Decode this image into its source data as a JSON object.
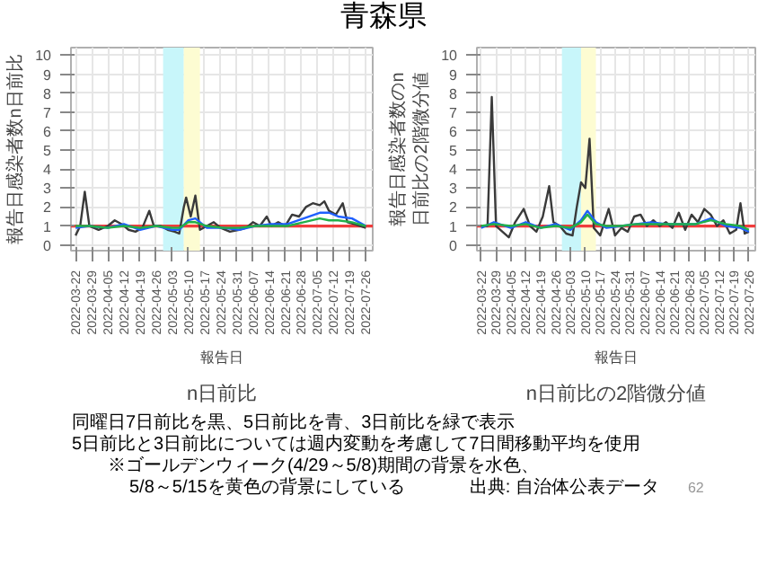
{
  "chart_data": [
    {
      "type": "line",
      "title": "n日前比",
      "xlabel": "報告日",
      "ylabel": "報告日感染者数n日前比",
      "annotations": [
        "青森県"
      ],
      "xlim": [
        "2022-03-20",
        "2022-07-29"
      ],
      "ylim": [
        -0.3,
        10.4
      ],
      "xticks": [
        "2022-03-22",
        "2022-03-29",
        "2022-04-05",
        "2022-04-12",
        "2022-04-19",
        "2022-04-26",
        "2022-05-03",
        "2022-05-10",
        "2022-05-17",
        "2022-05-24",
        "2022-05-31",
        "2022-06-07",
        "2022-06-14",
        "2022-06-21",
        "2022-06-28",
        "2022-07-05",
        "2022-07-12",
        "2022-07-19",
        "2022-07-26"
      ],
      "yticks": [
        0,
        1,
        2,
        3,
        4,
        5,
        6,
        7,
        8,
        9,
        10
      ],
      "grid": true,
      "bands": [
        {
          "axis": "x",
          "from": "2022-04-29",
          "to": "2022-05-08",
          "color": "#c8f6fa"
        },
        {
          "axis": "x",
          "from": "2022-05-08",
          "to": "2022-05-15",
          "color": "#fdfcd2"
        }
      ],
      "ref_lines": [
        {
          "axis": "y",
          "value": 1,
          "color": "#f03c3c"
        }
      ],
      "series": [
        {
          "color": "#3a3a3a",
          "x": [
            "2022-03-22",
            "2022-03-24",
            "2022-03-26",
            "2022-03-28",
            "2022-04-01",
            "2022-04-05",
            "2022-04-08",
            "2022-04-11",
            "2022-04-14",
            "2022-04-17",
            "2022-04-20",
            "2022-04-23",
            "2022-04-25",
            "2022-04-28",
            "2022-05-01",
            "2022-05-04",
            "2022-05-06",
            "2022-05-08",
            "2022-05-09",
            "2022-05-11",
            "2022-05-13",
            "2022-05-15",
            "2022-05-18",
            "2022-05-21",
            "2022-05-24",
            "2022-05-28",
            "2022-06-01",
            "2022-06-04",
            "2022-06-07",
            "2022-06-10",
            "2022-06-13",
            "2022-06-15",
            "2022-06-18",
            "2022-06-21",
            "2022-06-24",
            "2022-06-27",
            "2022-06-30",
            "2022-07-03",
            "2022-07-06",
            "2022-07-08",
            "2022-07-10",
            "2022-07-13",
            "2022-07-16",
            "2022-07-18",
            "2022-07-21",
            "2022-07-26"
          ],
          "values": [
            0.5,
            1.0,
            2.8,
            1.0,
            0.8,
            1.0,
            1.3,
            1.1,
            0.8,
            0.7,
            0.9,
            1.8,
            1.0,
            1.0,
            0.8,
            0.7,
            0.6,
            2.0,
            2.5,
            1.5,
            2.6,
            0.8,
            1.0,
            1.2,
            0.9,
            0.7,
            0.8,
            0.9,
            1.2,
            1.0,
            1.5,
            1.0,
            1.2,
            1.0,
            1.6,
            1.5,
            2.0,
            2.2,
            2.1,
            2.3,
            1.8,
            1.6,
            2.2,
            1.2,
            1.1,
            0.9
          ]
        },
        {
          "color": "#1f5fff",
          "x": [
            "2022-03-22",
            "2022-03-28",
            "2022-04-05",
            "2022-04-12",
            "2022-04-19",
            "2022-04-26",
            "2022-05-03",
            "2022-05-06",
            "2022-05-10",
            "2022-05-13",
            "2022-05-18",
            "2022-05-25",
            "2022-06-01",
            "2022-06-08",
            "2022-06-15",
            "2022-06-22",
            "2022-06-29",
            "2022-07-06",
            "2022-07-10",
            "2022-07-14",
            "2022-07-20",
            "2022-07-26"
          ],
          "values": [
            0.9,
            1.0,
            0.9,
            1.1,
            0.8,
            1.0,
            0.8,
            0.8,
            1.3,
            1.4,
            0.9,
            0.9,
            0.8,
            1.0,
            1.1,
            1.1,
            1.4,
            1.7,
            1.7,
            1.5,
            1.4,
            1.0
          ]
        },
        {
          "color": "#22b04a",
          "x": [
            "2022-03-22",
            "2022-03-28",
            "2022-04-05",
            "2022-04-12",
            "2022-04-19",
            "2022-04-26",
            "2022-05-03",
            "2022-05-06",
            "2022-05-10",
            "2022-05-13",
            "2022-05-18",
            "2022-05-25",
            "2022-06-01",
            "2022-06-08",
            "2022-06-15",
            "2022-06-22",
            "2022-06-29",
            "2022-07-06",
            "2022-07-10",
            "2022-07-14",
            "2022-07-20",
            "2022-07-26"
          ],
          "values": [
            1.0,
            1.0,
            0.9,
            1.0,
            0.9,
            1.0,
            0.9,
            0.9,
            1.2,
            1.2,
            1.0,
            0.9,
            0.9,
            1.0,
            1.0,
            1.0,
            1.2,
            1.4,
            1.3,
            1.3,
            1.2,
            1.0
          ]
        }
      ]
    },
    {
      "type": "line",
      "title": "n日前比の2階微分値",
      "xlabel": "報告日",
      "ylabel": "報告日感染者数のn日前比の2階微分値",
      "annotations": [
        "同曜日7日前比を黒、5日前比を青、3日前比を緑で表示",
        "5日前比と3日前比については週内変動を考慮して7日間移動平均を使用",
        "※ゴールデンウィーク(4/29～5/8)期間の背景を水色、",
        "5/8～5/15を黄色の背景にしている",
        "出典: 自治体公表データ",
        "62"
      ],
      "xlim": [
        "2022-03-20",
        "2022-07-29"
      ],
      "ylim": [
        -0.3,
        10.4
      ],
      "xticks": [
        "2022-03-22",
        "2022-03-29",
        "2022-04-05",
        "2022-04-12",
        "2022-04-19",
        "2022-04-26",
        "2022-05-03",
        "2022-05-10",
        "2022-05-17",
        "2022-05-24",
        "2022-05-31",
        "2022-06-07",
        "2022-06-14",
        "2022-06-21",
        "2022-06-28",
        "2022-07-05",
        "2022-07-12",
        "2022-07-19",
        "2022-07-26"
      ],
      "yticks": [
        0,
        1,
        2,
        3,
        4,
        5,
        6,
        7,
        8,
        9,
        10
      ],
      "grid": true,
      "bands": [
        {
          "axis": "x",
          "from": "2022-04-29",
          "to": "2022-05-08",
          "color": "#c8f6fa"
        },
        {
          "axis": "x",
          "from": "2022-05-08",
          "to": "2022-05-15",
          "color": "#fdfcd2"
        }
      ],
      "ref_lines": [
        {
          "axis": "y",
          "value": 1,
          "color": "#f03c3c"
        }
      ],
      "series": [
        {
          "color": "#3a3a3a",
          "x": [
            "2022-03-22",
            "2022-03-25",
            "2022-03-27",
            "2022-03-29",
            "2022-04-01",
            "2022-04-04",
            "2022-04-07",
            "2022-04-11",
            "2022-04-14",
            "2022-04-17",
            "2022-04-20",
            "2022-04-23",
            "2022-04-25",
            "2022-04-28",
            "2022-05-01",
            "2022-05-04",
            "2022-05-06",
            "2022-05-08",
            "2022-05-10",
            "2022-05-12",
            "2022-05-14",
            "2022-05-17",
            "2022-05-21",
            "2022-05-24",
            "2022-05-27",
            "2022-05-30",
            "2022-06-02",
            "2022-06-05",
            "2022-06-08",
            "2022-06-11",
            "2022-06-14",
            "2022-06-17",
            "2022-06-20",
            "2022-06-23",
            "2022-06-26",
            "2022-06-29",
            "2022-07-02",
            "2022-07-05",
            "2022-07-08",
            "2022-07-11",
            "2022-07-14",
            "2022-07-17",
            "2022-07-20",
            "2022-07-22",
            "2022-07-24",
            "2022-07-26"
          ],
          "values": [
            1.0,
            1.0,
            7.8,
            1.0,
            0.7,
            0.4,
            1.2,
            1.9,
            1.0,
            0.7,
            1.5,
            3.1,
            1.2,
            1.0,
            0.6,
            0.5,
            2.0,
            3.3,
            3.0,
            5.6,
            0.9,
            0.5,
            1.9,
            0.5,
            0.9,
            0.7,
            1.5,
            1.6,
            1.0,
            1.3,
            1.0,
            1.2,
            0.9,
            1.7,
            0.8,
            1.6,
            1.2,
            1.9,
            1.6,
            1.0,
            1.3,
            0.6,
            0.8,
            2.2,
            0.6,
            0.7
          ]
        },
        {
          "color": "#1f5fff",
          "x": [
            "2022-03-22",
            "2022-03-28",
            "2022-04-05",
            "2022-04-12",
            "2022-04-19",
            "2022-04-26",
            "2022-05-03",
            "2022-05-08",
            "2022-05-11",
            "2022-05-15",
            "2022-05-20",
            "2022-05-27",
            "2022-06-03",
            "2022-06-10",
            "2022-06-17",
            "2022-06-24",
            "2022-07-01",
            "2022-07-08",
            "2022-07-15",
            "2022-07-22",
            "2022-07-26"
          ],
          "values": [
            0.9,
            1.2,
            0.9,
            1.2,
            0.9,
            1.1,
            0.8,
            1.3,
            1.8,
            1.2,
            0.9,
            1.0,
            1.1,
            1.2,
            1.1,
            1.1,
            1.1,
            1.4,
            1.0,
            0.9,
            0.7
          ]
        },
        {
          "color": "#22b04a",
          "x": [
            "2022-03-22",
            "2022-03-28",
            "2022-04-05",
            "2022-04-12",
            "2022-04-19",
            "2022-04-26",
            "2022-05-03",
            "2022-05-08",
            "2022-05-11",
            "2022-05-15",
            "2022-05-20",
            "2022-05-27",
            "2022-06-03",
            "2022-06-10",
            "2022-06-17",
            "2022-06-24",
            "2022-07-01",
            "2022-07-08",
            "2022-07-15",
            "2022-07-22",
            "2022-07-26"
          ],
          "values": [
            1.0,
            1.1,
            1.0,
            1.1,
            0.9,
            1.0,
            0.9,
            1.2,
            1.6,
            1.1,
            1.0,
            1.0,
            1.1,
            1.1,
            1.1,
            1.1,
            1.1,
            1.3,
            1.1,
            1.0,
            0.8
          ]
        }
      ]
    }
  ]
}
